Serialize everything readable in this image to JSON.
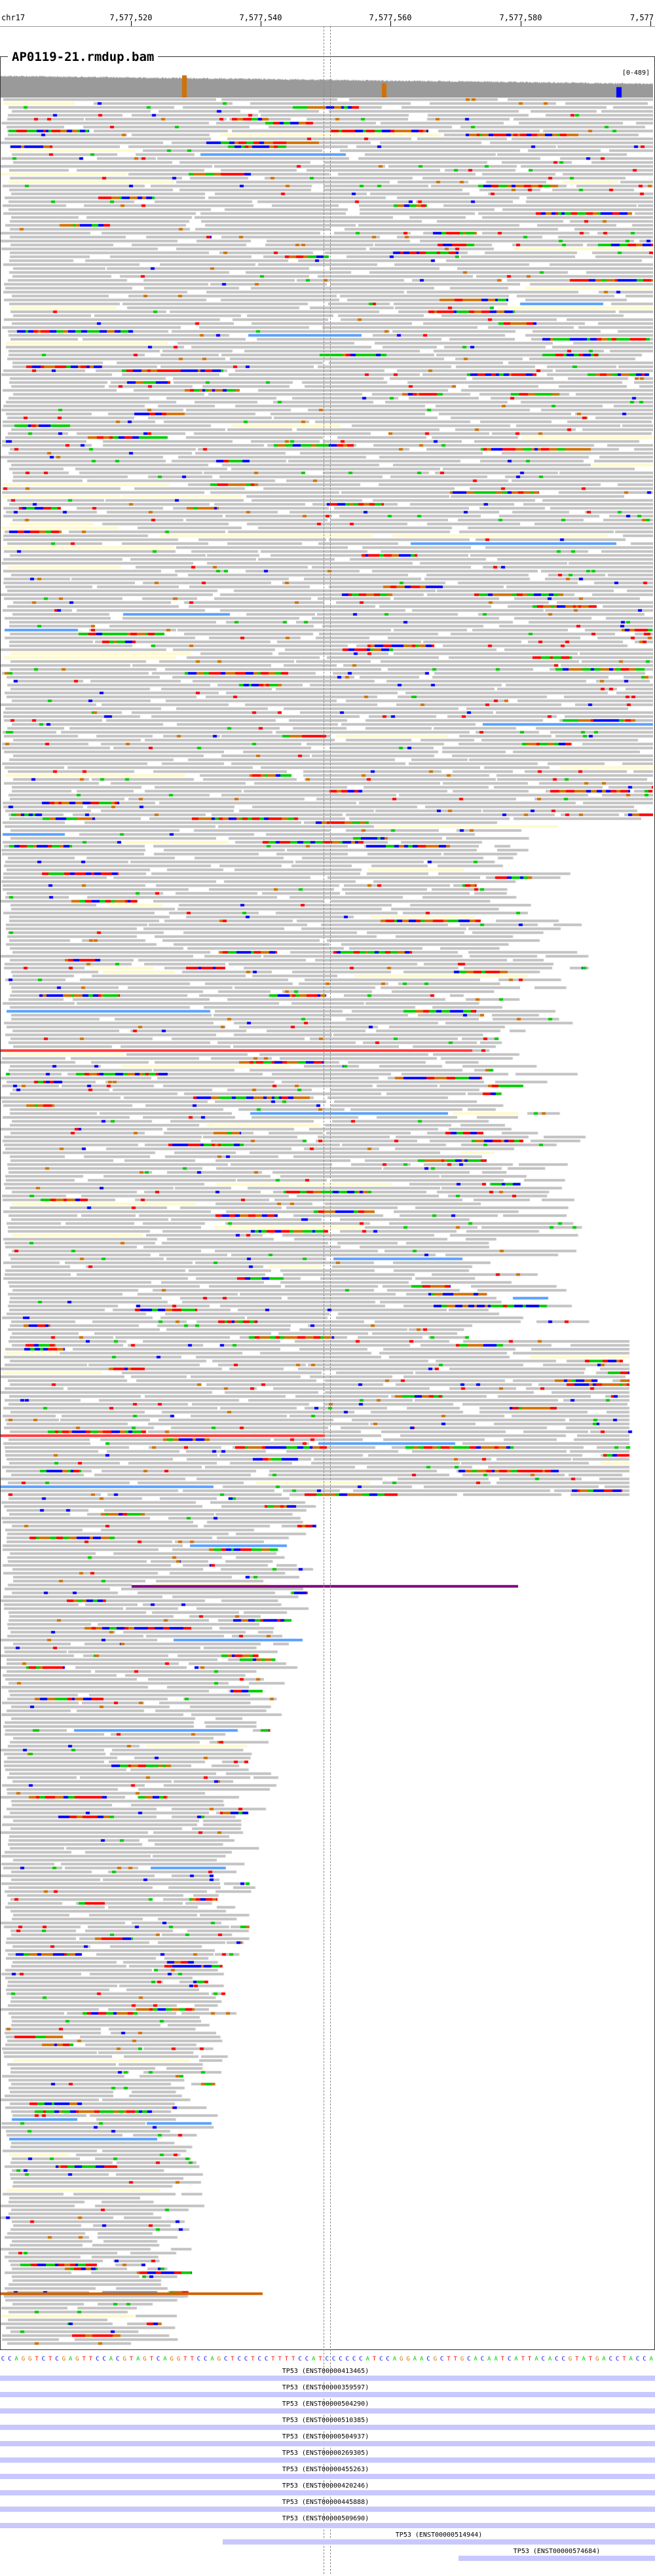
{
  "ruler": {
    "chromosome": "chr17",
    "ticks": [
      "7,577,520",
      "7,577,540",
      "7,577,560",
      "7,577,580",
      "7,577"
    ]
  },
  "track": {
    "title": "AP0119-21.rmdup.bam",
    "coverage_scale": "[0-489]"
  },
  "sequence": "CCAGGTCTCGAGTTCCACGTAGTCAGGTTCCAGCTCCTCCTTTTCCATCCCCCCATCCAGGAACGCTTGCACAATCATTACACCGTATGACCTACCA",
  "colors": {
    "read": "#c3c3c3",
    "read_border": "#9a9a9a",
    "base_A": "#00cc00",
    "base_C": "#0000ff",
    "base_G": "#d17105",
    "base_T": "#ff0000",
    "insertion": "#800080",
    "soft_yellow": "#fffacd",
    "blue_read": "#5aa0ff",
    "gene_bar": "#c8c8ff"
  },
  "genes": [
    {
      "label": "TP53 (ENST00000413465)",
      "start": 0.0,
      "end": 1.0
    },
    {
      "label": "TP53 (ENST00000359597)",
      "start": 0.0,
      "end": 1.0
    },
    {
      "label": "TP53 (ENST00000504290)",
      "start": 0.0,
      "end": 1.0
    },
    {
      "label": "TP53 (ENST00000510385)",
      "start": 0.0,
      "end": 1.0
    },
    {
      "label": "TP53 (ENST00000504937)",
      "start": 0.0,
      "end": 1.0
    },
    {
      "label": "TP53 (ENST00000269305)",
      "start": 0.0,
      "end": 1.0
    },
    {
      "label": "TP53 (ENST00000455263)",
      "start": 0.0,
      "end": 1.0
    },
    {
      "label": "TP53 (ENST00000420246)",
      "start": 0.0,
      "end": 1.0
    },
    {
      "label": "TP53 (ENST00000445888)",
      "start": 0.0,
      "end": 1.0
    },
    {
      "label": "TP53 (ENST00000509690)",
      "start": 0.0,
      "end": 1.0
    },
    {
      "label": "TP53 (ENST00000514944)",
      "start": 0.34,
      "end": 1.0
    },
    {
      "label": "TP53 (ENST00000574684)",
      "start": 0.7,
      "end": 1.0
    }
  ]
}
